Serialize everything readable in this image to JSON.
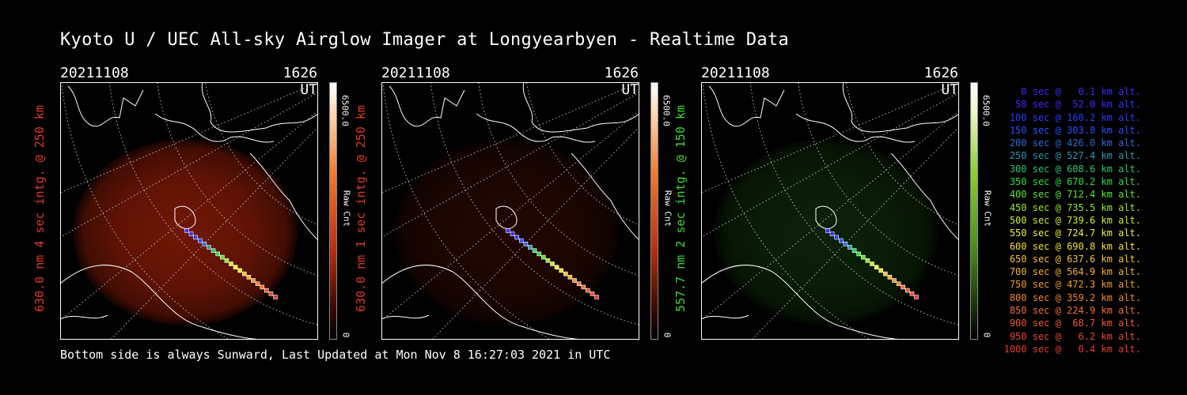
{
  "title": "Kyoto U / UEC All-sky Airglow Imager at Longyearbyen - Realtime Data",
  "footer": "Bottom side is always Sunward, Last Updated at Mon Nov  8 16:27:03 2021 in UTC",
  "panels": [
    {
      "date": "20211108",
      "time": "1626 UT",
      "ylabel": "630.0 nm 4 sec intg. @ 250 km",
      "label_color": "#e03a24",
      "cb_max": "6500.0",
      "cb_min": "0",
      "cb_unit": "Raw Cnt",
      "scheme": "red",
      "intensity": 0.85
    },
    {
      "date": "20211108",
      "time": "1626 UT",
      "ylabel": "630.0 nm 1 sec intg. @ 250 km",
      "label_color": "#e03a24",
      "cb_max": "6500.0",
      "cb_min": "0",
      "cb_unit": "Raw Cnt",
      "scheme": "red",
      "intensity": 0.25
    },
    {
      "date": "20211108",
      "time": "1626 UT",
      "ylabel": "557.7 nm 2 sec intg. @ 150 km",
      "label_color": "#3cdc2c",
      "cb_max": "6500.0",
      "cb_min": "0",
      "cb_unit": "Raw Cnt",
      "scheme": "green",
      "intensity": 0.4
    }
  ],
  "legend": [
    {
      "text": "0 sec @   0.1 km alt.",
      "color": "#3a2cff"
    },
    {
      "text": "50 sec @  52.0 km alt.",
      "color": "#3a2cff"
    },
    {
      "text": "100 sec @ 160.2 km alt.",
      "color": "#2a3cff"
    },
    {
      "text": "150 sec @ 303.8 km alt.",
      "color": "#2850ff"
    },
    {
      "text": "200 sec @ 426.0 km alt.",
      "color": "#2a6cd8"
    },
    {
      "text": "250 sec @ 527.4 km alt.",
      "color": "#2a9ab0"
    },
    {
      "text": "300 sec @ 608.6 km alt.",
      "color": "#2ac870"
    },
    {
      "text": "350 sec @ 670.2 km alt.",
      "color": "#2ce040"
    },
    {
      "text": "400 sec @ 712.4 km alt.",
      "color": "#5ce82c"
    },
    {
      "text": "450 sec @ 735.5 km alt.",
      "color": "#94ec2c"
    },
    {
      "text": "500 sec @ 739.6 km alt.",
      "color": "#c8ee2c"
    },
    {
      "text": "550 sec @ 724.7 km alt.",
      "color": "#eef03a"
    },
    {
      "text": "600 sec @ 690.8 km alt.",
      "color": "#f4e02e"
    },
    {
      "text": "650 sec @ 637.6 km alt.",
      "color": "#f4c42e"
    },
    {
      "text": "700 sec @ 564.9 km alt.",
      "color": "#f4b02e"
    },
    {
      "text": "750 sec @ 472.3 km alt.",
      "color": "#f49a2e"
    },
    {
      "text": "800 sec @ 359.2 km alt.",
      "color": "#f4862e"
    },
    {
      "text": "850 sec @ 224.9 km alt.",
      "color": "#f4702e"
    },
    {
      "text": "900 sec @  68.7 km alt.",
      "color": "#f05a2e"
    },
    {
      "text": "950 sec @   6.2 km alt.",
      "color": "#ec4a2e"
    },
    {
      "text": "1000 sec @   0.4 km alt.",
      "color": "#e83a2e"
    }
  ]
}
